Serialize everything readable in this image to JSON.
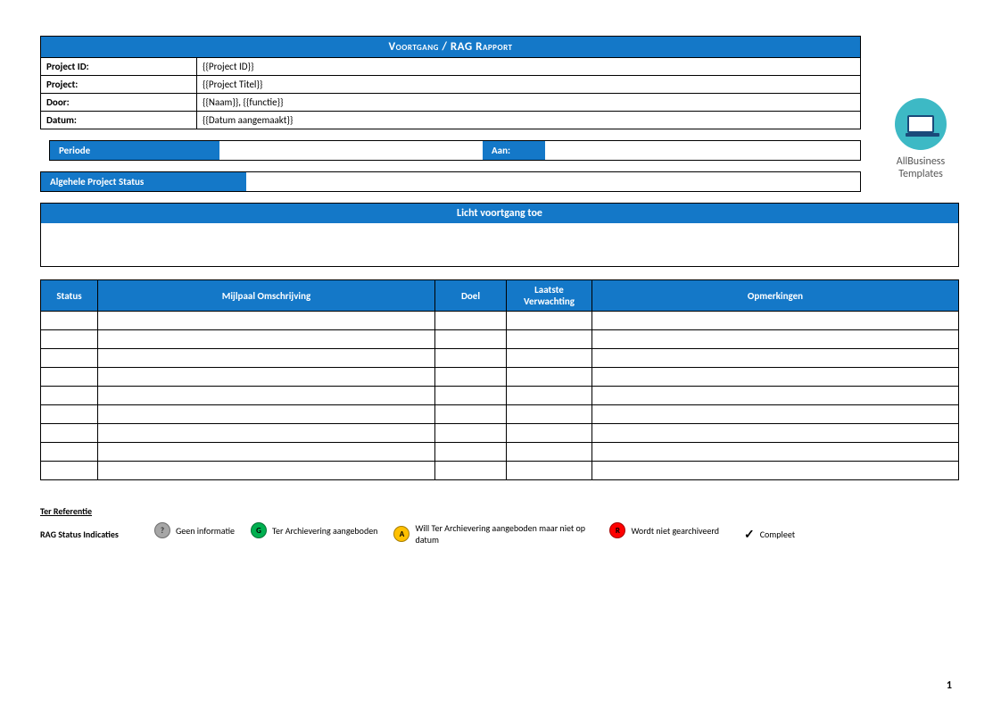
{
  "colors": {
    "primary": "#1478c8",
    "border": "#000000",
    "grey": "#a6a6a6",
    "green": "#00b050",
    "amber": "#ffc000",
    "red": "#ff0000",
    "logo_bg": "#3db9c5"
  },
  "logo": {
    "line1": "AllBusiness",
    "line2": "Templates"
  },
  "header": {
    "title": "Voortgang / RAG Rapport",
    "rows": [
      {
        "label": "Project ID:",
        "value": "{{Project ID}}"
      },
      {
        "label": "Project:",
        "value": "{{Project Titel}}"
      },
      {
        "label": "Door:",
        "value": "{{Naam}}, {{functie}}"
      },
      {
        "label": "Datum:",
        "value": "{{Datum aangemaakt}}"
      }
    ]
  },
  "periode": {
    "label": "Periode",
    "aan_label": "Aan:"
  },
  "status": {
    "label": "Algehele Project Status"
  },
  "licht": {
    "title": "Licht voortgang toe"
  },
  "milestones": {
    "columns": {
      "status": "Status",
      "desc": "Mijlpaal  Omschrijving",
      "doel": "Doel",
      "laatste": "Laatste Verwachting",
      "opm": "Opmerkingen"
    },
    "row_count": 9
  },
  "reference": {
    "title": "Ter Referentie",
    "label": "RAG Status Indicaties",
    "items": [
      {
        "symbol": "?",
        "color": "#a6a6a6",
        "text_color": "#333",
        "label": "Geen informatie"
      },
      {
        "symbol": "G",
        "color": "#00b050",
        "text_color": "#000",
        "label": "Ter Archievering aangeboden"
      },
      {
        "symbol": "A",
        "color": "#ffc000",
        "text_color": "#000",
        "label": "Will Ter Archievering aangeboden maar niet op datum"
      },
      {
        "symbol": "R",
        "color": "#ff0000",
        "text_color": "#000",
        "label": "Wordt niet gearchiveerd"
      }
    ],
    "complete": {
      "symbol": "✓",
      "label": "Compleet"
    }
  },
  "page_number": "1"
}
